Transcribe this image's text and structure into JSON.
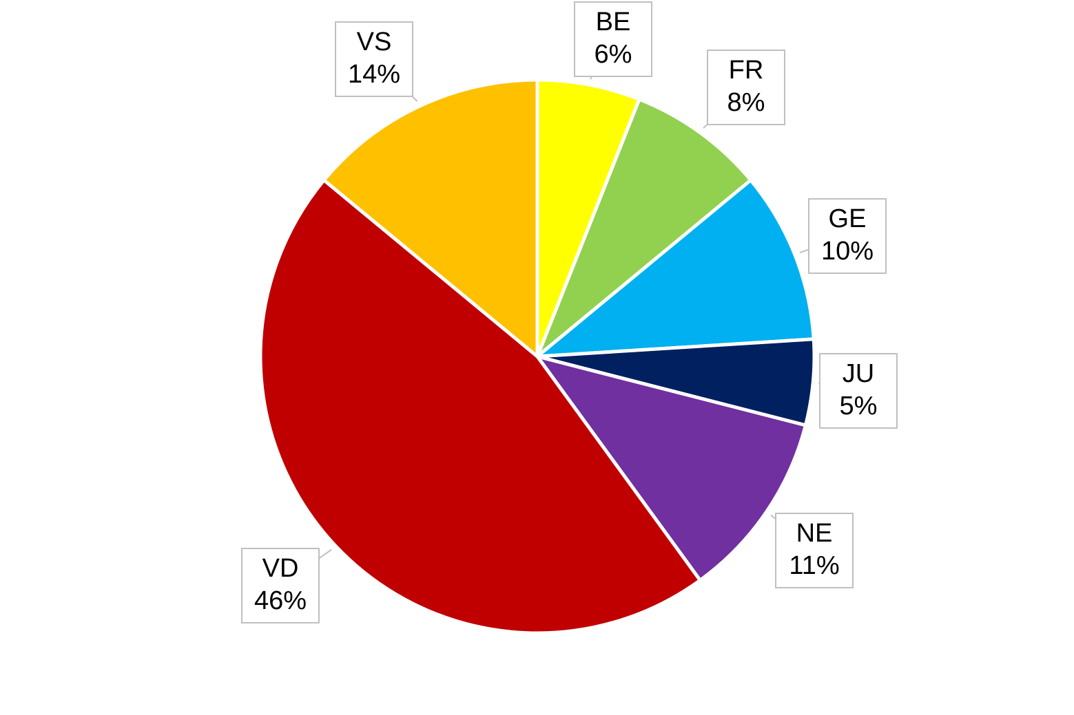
{
  "chart_data": {
    "type": "pie",
    "categories": [
      "BE",
      "FR",
      "GE",
      "JU",
      "NE",
      "VD",
      "VS"
    ],
    "values": [
      6,
      8,
      10,
      5,
      11,
      46,
      14
    ],
    "value_labels": [
      "6%",
      "8%",
      "10%",
      "5%",
      "11%",
      "46%",
      "14%"
    ],
    "colors": [
      "#ffff00",
      "#92d050",
      "#00b0f0",
      "#002060",
      "#7030a0",
      "#c00000",
      "#ffc000"
    ]
  }
}
